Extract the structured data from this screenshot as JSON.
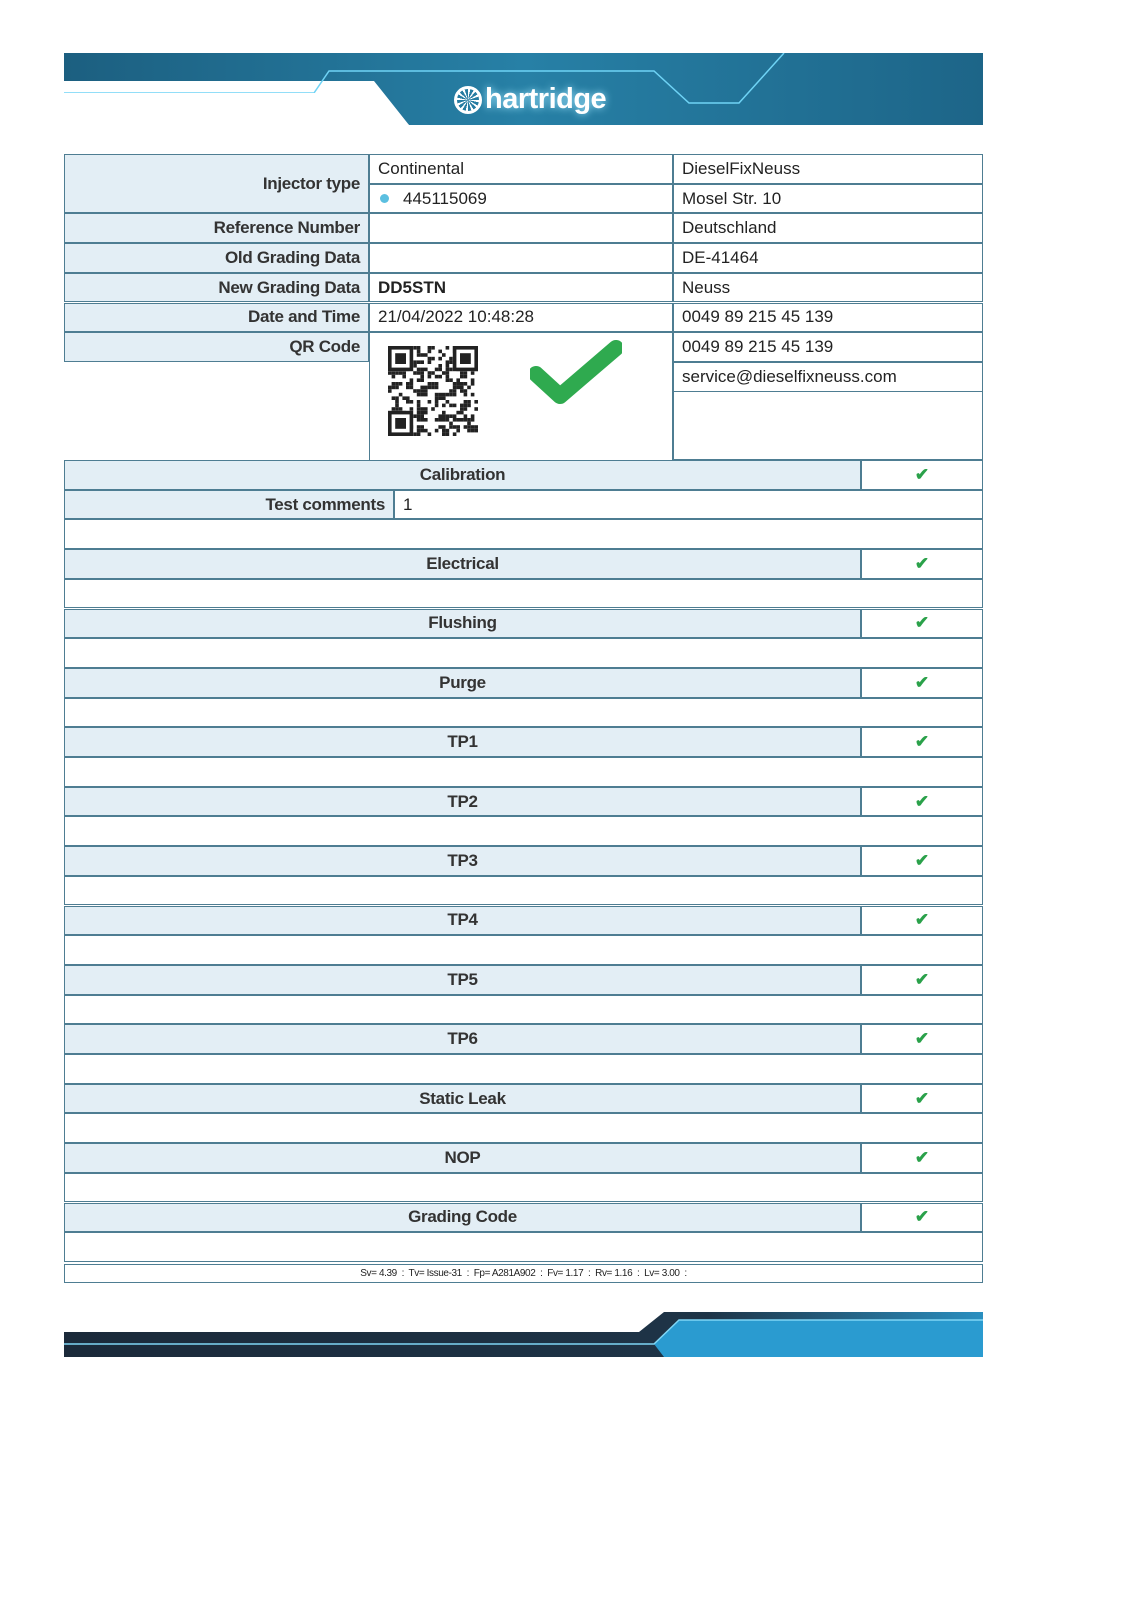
{
  "header": {
    "logo_text": "hartridge",
    "logo_icon": "wheel-icon",
    "colors": {
      "band": "#1f6f93",
      "dark": "#1b2a3a",
      "accent": "#5bc8ee"
    }
  },
  "info": {
    "labels": {
      "injector_type": "Injector type",
      "reference_number": "Reference Number",
      "old_grading": "Old Grading Data",
      "new_grading": "New Grading Data",
      "date_time": "Date and Time",
      "qr_code": "QR Code"
    },
    "values": {
      "manufacturer": "Continental",
      "part_number": "445115069",
      "reference_number": "",
      "old_grading": "",
      "new_grading": "DD5STN",
      "date_time": "21/04/2022 10:48:28"
    },
    "result": "pass",
    "company": [
      "DieselFixNeuss",
      "Mosel Str. 10",
      "Deutschland",
      "DE-41464",
      "Neuss",
      "0049 89 215 45 139",
      "0049 89 215 45 139",
      "service@dieselfixneuss.com"
    ]
  },
  "tests": {
    "calibration": {
      "label": "Calibration",
      "status": "pass"
    },
    "test_comments_label": "Test comments",
    "test_comments_value": "1",
    "sections": [
      {
        "label": "Electrical",
        "status": "pass"
      },
      {
        "label": "Flushing",
        "status": "pass"
      },
      {
        "label": "Purge",
        "status": "pass"
      },
      {
        "label": "TP1",
        "status": "pass"
      },
      {
        "label": "TP2",
        "status": "pass"
      },
      {
        "label": "TP3",
        "status": "pass"
      },
      {
        "label": "TP4",
        "status": "pass"
      },
      {
        "label": "TP5",
        "status": "pass"
      },
      {
        "label": "TP6",
        "status": "pass"
      },
      {
        "label": "Static Leak",
        "status": "pass"
      },
      {
        "label": "NOP",
        "status": "pass"
      },
      {
        "label": "Grading Code",
        "status": "pass"
      }
    ],
    "check_glyph": "✔",
    "pass_color": "#2aa14a"
  },
  "footer": {
    "versions": "Sv= 4.39  :  Tv= Issue-31  :  Fp= A281A902  :  Fv= 1.17  :  Rv= 1.16  :  Lv= 3.00  :"
  }
}
